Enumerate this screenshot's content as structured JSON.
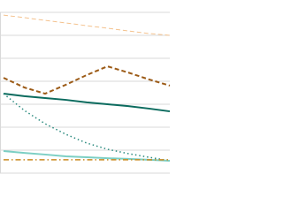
{
  "chart_data": {
    "type": "line",
    "categories": [
      null,
      null,
      null,
      null,
      null,
      null,
      null,
      null,
      null
    ],
    "ylim": [
      0,
      7
    ],
    "yticks": [
      0,
      1,
      2,
      3,
      4,
      5,
      6,
      7
    ],
    "grid": true,
    "series": [
      {
        "color": "#f4c28e",
        "dash": "dashed",
        "width": 1,
        "values": [
          6.88,
          6.77,
          6.65,
          6.54,
          6.42,
          6.31,
          6.19,
          6.08,
          6.0
        ]
      },
      {
        "color": "#9c5b17",
        "dash": "dashed",
        "width": 2,
        "values": [
          4.15,
          3.73,
          3.46,
          3.85,
          4.27,
          4.65,
          4.38,
          4.08,
          3.81
        ]
      },
      {
        "color": "#0b6b5e",
        "dash": "solid",
        "width": 2,
        "values": [
          3.46,
          3.35,
          3.27,
          3.19,
          3.08,
          3.0,
          2.92,
          2.81,
          2.69
        ]
      },
      {
        "color": "#2a8a7e",
        "dash": "dotted",
        "width": 1.5,
        "values": [
          3.46,
          2.73,
          2.15,
          1.69,
          1.31,
          1.04,
          0.85,
          0.69,
          0.54
        ]
      },
      {
        "color": "#7ccfc4",
        "dash": "solid",
        "width": 2,
        "values": [
          0.96,
          0.88,
          0.81,
          0.73,
          0.69,
          0.65,
          0.62,
          0.58,
          0.54
        ]
      },
      {
        "color": "#c98a22",
        "dash": "dashdot",
        "width": 1.5,
        "values": [
          0.58,
          0.58,
          0.58,
          0.58,
          0.58,
          0.58,
          0.58,
          0.58,
          0.58
        ]
      }
    ]
  }
}
